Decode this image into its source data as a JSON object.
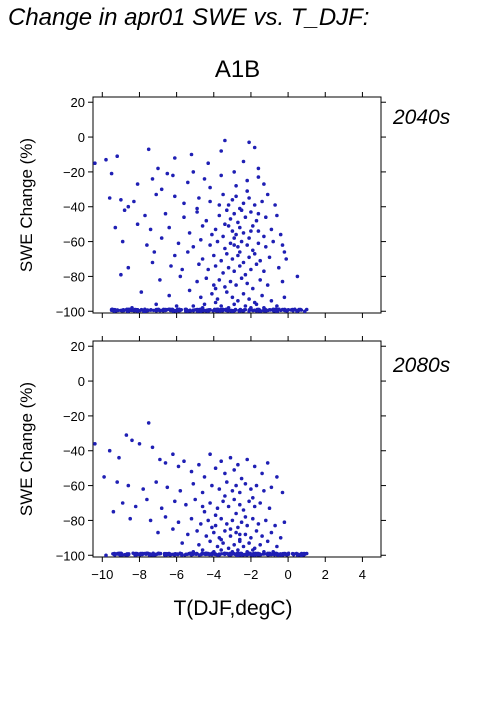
{
  "figure": {
    "title": "Change in apr01 SWE vs. T_DJF:",
    "scenario": "A1B",
    "accent_color": "#1f1fb4"
  },
  "chart_data": [
    {
      "type": "scatter",
      "panel_label": "2040s",
      "xlabel": "",
      "ylabel": "SWE Change (%)",
      "xlim": [
        -10.5,
        5
      ],
      "ylim": [
        -101,
        23
      ],
      "xticks": [
        -10,
        -8,
        -6,
        -4,
        -2,
        0,
        2,
        4
      ],
      "yticks": [
        20,
        0,
        -20,
        -40,
        -60,
        -80,
        -100
      ],
      "xtick_labels_shown": false,
      "grid": false,
      "marker_color": "#1f1fb4",
      "points": [
        [
          -10.4,
          -15
        ],
        [
          -9.8,
          -13
        ],
        [
          -9.2,
          -11
        ],
        [
          -7.5,
          -7
        ],
        [
          -6.1,
          -12
        ],
        [
          -5.2,
          -10
        ],
        [
          -4.3,
          -15
        ],
        [
          -3.4,
          -2
        ],
        [
          -3.6,
          -8
        ],
        [
          -2.1,
          -3
        ],
        [
          -1.8,
          -6
        ],
        [
          -2.4,
          -14
        ],
        [
          -1.6,
          -18
        ],
        [
          -9.5,
          -21
        ],
        [
          -7.0,
          -18
        ],
        [
          -6.5,
          -21
        ],
        [
          -8.1,
          -27
        ],
        [
          -7.3,
          -24
        ],
        [
          -6.2,
          -22
        ],
        [
          -5.4,
          -26
        ],
        [
          -5.1,
          -20
        ],
        [
          -4.5,
          -24
        ],
        [
          -3.6,
          -22
        ],
        [
          -2.9,
          -20
        ],
        [
          -2.2,
          -25
        ],
        [
          -1.6,
          -23
        ],
        [
          -1.3,
          -27
        ],
        [
          -2.8,
          -28
        ],
        [
          -4.2,
          -29
        ],
        [
          -6.8,
          -30
        ],
        [
          -9.6,
          -35
        ],
        [
          -9.0,
          -36
        ],
        [
          -8.6,
          -40
        ],
        [
          -8.3,
          -37
        ],
        [
          -7.1,
          -33
        ],
        [
          -6.1,
          -34
        ],
        [
          -5.6,
          -38
        ],
        [
          -4.9,
          -41
        ],
        [
          -4.2,
          -37
        ],
        [
          -3.5,
          -33
        ],
        [
          -3.2,
          -39
        ],
        [
          -3.0,
          -36
        ],
        [
          -2.8,
          -34
        ],
        [
          -2.6,
          -41
        ],
        [
          -2.4,
          -38
        ],
        [
          -2.1,
          -35
        ],
        [
          -1.8,
          -39
        ],
        [
          -1.4,
          -37
        ],
        [
          -1.1,
          -33
        ],
        [
          -0.7,
          -39
        ],
        [
          -8.8,
          -42
        ],
        [
          -7.7,
          -45
        ],
        [
          -6.6,
          -44
        ],
        [
          -5.6,
          -46
        ],
        [
          -4.9,
          -43
        ],
        [
          -4.4,
          -48
        ],
        [
          -3.7,
          -45
        ],
        [
          -3.3,
          -42
        ],
        [
          -3.1,
          -47
        ],
        [
          -2.9,
          -44
        ],
        [
          -2.7,
          -49
        ],
        [
          -2.5,
          -42
        ],
        [
          -2.3,
          -46
        ],
        [
          -2.0,
          -43
        ],
        [
          -1.7,
          -48
        ],
        [
          -1.2,
          -46
        ],
        [
          -0.6,
          -45
        ],
        [
          -9.3,
          -52
        ],
        [
          -8.1,
          -50
        ],
        [
          -7.4,
          -53
        ],
        [
          -6.4,
          -52
        ],
        [
          -5.3,
          -55
        ],
        [
          -4.6,
          -51
        ],
        [
          -3.9,
          -53
        ],
        [
          -3.5,
          -57
        ],
        [
          -3.2,
          -51
        ],
        [
          -3.0,
          -54
        ],
        [
          -2.8,
          -56
        ],
        [
          -2.6,
          -52
        ],
        [
          -2.4,
          -55
        ],
        [
          -2.1,
          -58
        ],
        [
          -1.9,
          -51
        ],
        [
          -1.6,
          -54
        ],
        [
          -1.3,
          -57
        ],
        [
          -0.9,
          -53
        ],
        [
          -0.4,
          -56
        ],
        [
          -8.9,
          -60
        ],
        [
          -7.6,
          -62
        ],
        [
          -6.8,
          -58
        ],
        [
          -5.9,
          -61
        ],
        [
          -5.1,
          -63
        ],
        [
          -4.7,
          -59
        ],
        [
          -4.2,
          -62
        ],
        [
          -3.8,
          -60
        ],
        [
          -3.4,
          -64
        ],
        [
          -3.1,
          -61
        ],
        [
          -2.9,
          -58
        ],
        [
          -2.7,
          -63
        ],
        [
          -2.5,
          -60
        ],
        [
          -2.2,
          -62
        ],
        [
          -1.9,
          -65
        ],
        [
          -1.6,
          -61
        ],
        [
          -1.2,
          -63
        ],
        [
          -0.8,
          -60
        ],
        [
          -0.3,
          -62
        ],
        [
          -0.2,
          -66
        ],
        [
          -7.2,
          -66
        ],
        [
          -6.1,
          -68
        ],
        [
          -5.4,
          -66
        ],
        [
          -4.6,
          -70
        ],
        [
          -4.0,
          -68
        ],
        [
          -3.6,
          -71
        ],
        [
          -3.3,
          -67
        ],
        [
          -3.0,
          -70
        ],
        [
          -2.7,
          -68
        ],
        [
          -2.4,
          -72
        ],
        [
          -2.1,
          -69
        ],
        [
          -1.8,
          -67
        ],
        [
          -1.5,
          -71
        ],
        [
          -1.0,
          -69
        ],
        [
          -0.1,
          -70
        ],
        [
          -8.6,
          -75
        ],
        [
          -7.3,
          -72
        ],
        [
          -6.3,
          -74
        ],
        [
          -5.7,
          -76
        ],
        [
          -4.8,
          -73
        ],
        [
          -4.3,
          -76
        ],
        [
          -3.9,
          -74
        ],
        [
          -3.5,
          -78
        ],
        [
          -3.2,
          -75
        ],
        [
          -2.9,
          -77
        ],
        [
          -2.6,
          -74
        ],
        [
          -2.3,
          -79
        ],
        [
          -2.0,
          -76
        ],
        [
          -1.7,
          -73
        ],
        [
          -1.3,
          -77
        ],
        [
          -0.5,
          -75
        ],
        [
          0.5,
          -80
        ],
        [
          -9.0,
          -79
        ],
        [
          -6.9,
          -82
        ],
        [
          -5.8,
          -80
        ],
        [
          -4.9,
          -83
        ],
        [
          -4.4,
          -81
        ],
        [
          -4.0,
          -85
        ],
        [
          -3.7,
          -82
        ],
        [
          -3.4,
          -86
        ],
        [
          -3.1,
          -83
        ],
        [
          -2.8,
          -85
        ],
        [
          -2.5,
          -81
        ],
        [
          -2.2,
          -84
        ],
        [
          -1.9,
          -87
        ],
        [
          -1.5,
          -82
        ],
        [
          -1.1,
          -85
        ],
        [
          -0.3,
          -83
        ],
        [
          -7.9,
          -89
        ],
        [
          -6.4,
          -91
        ],
        [
          -5.3,
          -88
        ],
        [
          -4.7,
          -92
        ],
        [
          -4.1,
          -90
        ],
        [
          -3.8,
          -93
        ],
        [
          -3.3,
          -89
        ],
        [
          -3.0,
          -92
        ],
        [
          -2.7,
          -94
        ],
        [
          -2.4,
          -90
        ],
        [
          -2.1,
          -93
        ],
        [
          -1.8,
          -95
        ],
        [
          -1.4,
          -91
        ],
        [
          -0.9,
          -94
        ],
        [
          -0.2,
          -92
        ],
        [
          -4.5,
          -96
        ],
        [
          -3.6,
          -97
        ],
        [
          -2.9,
          -96
        ],
        [
          -2.3,
          -97
        ],
        [
          -1.7,
          -96
        ],
        [
          -3.9,
          -95
        ],
        [
          -5.1,
          -97
        ],
        [
          -6.0,
          -97
        ],
        [
          -7.1,
          -96
        ],
        [
          -2.0,
          -98
        ],
        [
          -3.2,
          -98
        ],
        [
          -4.6,
          -98
        ],
        [
          -1.3,
          -98
        ],
        [
          -0.6,
          -97
        ],
        [
          -8.4,
          -98
        ],
        [
          -9.5,
          -99
        ],
        [
          -6.6,
          -99
        ],
        [
          -5.5,
          -99
        ],
        [
          -0.3,
          -99
        ],
        [
          0.9,
          -100
        ],
        [
          1.0,
          -99
        ],
        [
          -3.4,
          -50
        ],
        [
          -2.6,
          -66
        ],
        [
          -3.7,
          -39
        ],
        [
          -4.1,
          -56
        ],
        [
          -2.2,
          -31
        ],
        [
          -3.9,
          -87
        ],
        [
          -2.0,
          -54
        ],
        [
          -4.8,
          -35
        ],
        [
          -1.6,
          -44
        ],
        [
          -2.9,
          -62
        ]
      ],
      "floor_cluster": {
        "x_range": [
          -9.5,
          1
        ],
        "y": -100
      }
    },
    {
      "type": "scatter",
      "panel_label": "2080s",
      "xlabel": "T(DJF,degC)",
      "ylabel": "SWE Change (%)",
      "xlim": [
        -10.5,
        5
      ],
      "ylim": [
        -101,
        23
      ],
      "xticks": [
        -10,
        -8,
        -6,
        -4,
        -2,
        0,
        2,
        4
      ],
      "yticks": [
        20,
        0,
        -20,
        -40,
        -60,
        -80,
        -100
      ],
      "xtick_labels_shown": true,
      "grid": false,
      "marker_color": "#1f1fb4",
      "points": [
        [
          -10.4,
          -36
        ],
        [
          -9.9,
          -55
        ],
        [
          -9.6,
          -40
        ],
        [
          -9.1,
          -44
        ],
        [
          -8.7,
          -31
        ],
        [
          -8.4,
          -34
        ],
        [
          -8.0,
          -36
        ],
        [
          -7.5,
          -24
        ],
        [
          -7.3,
          -38
        ],
        [
          -6.9,
          -45
        ],
        [
          -6.6,
          -47
        ],
        [
          -6.2,
          -42
        ],
        [
          -5.9,
          -49
        ],
        [
          -5.6,
          -46
        ],
        [
          -5.2,
          -52
        ],
        [
          -4.8,
          -48
        ],
        [
          -4.5,
          -55
        ],
        [
          -4.2,
          -42
        ],
        [
          -3.9,
          -50
        ],
        [
          -3.6,
          -46
        ],
        [
          -3.4,
          -53
        ],
        [
          -3.1,
          -44
        ],
        [
          -2.9,
          -51
        ],
        [
          -2.7,
          -48
        ],
        [
          -2.5,
          -56
        ],
        [
          -2.2,
          -45
        ],
        [
          -1.8,
          -49
        ],
        [
          -1.4,
          -53
        ],
        [
          -1.1,
          -47
        ],
        [
          -0.6,
          -55
        ],
        [
          -9.2,
          -58
        ],
        [
          -8.6,
          -60
        ],
        [
          -7.8,
          -62
        ],
        [
          -7.1,
          -58
        ],
        [
          -6.5,
          -61
        ],
        [
          -5.8,
          -63
        ],
        [
          -5.1,
          -59
        ],
        [
          -4.6,
          -64
        ],
        [
          -4.1,
          -60
        ],
        [
          -3.7,
          -62
        ],
        [
          -3.3,
          -58
        ],
        [
          -3.0,
          -63
        ],
        [
          -2.8,
          -60
        ],
        [
          -2.6,
          -64
        ],
        [
          -2.3,
          -59
        ],
        [
          -2.0,
          -62
        ],
        [
          -1.7,
          -60
        ],
        [
          -1.3,
          -63
        ],
        [
          -0.9,
          -61
        ],
        [
          -0.3,
          -64
        ],
        [
          -9.4,
          -75
        ],
        [
          -8.9,
          -70
        ],
        [
          -8.2,
          -72
        ],
        [
          -7.6,
          -68
        ],
        [
          -6.8,
          -73
        ],
        [
          -6.1,
          -69
        ],
        [
          -5.5,
          -71
        ],
        [
          -5.0,
          -68
        ],
        [
          -4.6,
          -72
        ],
        [
          -4.2,
          -70
        ],
        [
          -3.8,
          -73
        ],
        [
          -3.5,
          -69
        ],
        [
          -3.2,
          -72
        ],
        [
          -2.9,
          -68
        ],
        [
          -2.6,
          -71
        ],
        [
          -2.4,
          -74
        ],
        [
          -2.1,
          -69
        ],
        [
          -1.8,
          -72
        ],
        [
          -1.5,
          -70
        ],
        [
          -1.0,
          -73
        ],
        [
          -8.5,
          -79
        ],
        [
          -7.4,
          -80
        ],
        [
          -6.6,
          -78
        ],
        [
          -5.9,
          -81
        ],
        [
          -5.2,
          -79
        ],
        [
          -4.7,
          -82
        ],
        [
          -4.3,
          -80
        ],
        [
          -3.9,
          -83
        ],
        [
          -3.6,
          -79
        ],
        [
          -3.3,
          -82
        ],
        [
          -3.0,
          -80
        ],
        [
          -2.7,
          -84
        ],
        [
          -2.5,
          -81
        ],
        [
          -2.2,
          -83
        ],
        [
          -1.9,
          -79
        ],
        [
          -1.6,
          -82
        ],
        [
          -1.2,
          -80
        ],
        [
          -0.7,
          -83
        ],
        [
          -0.2,
          -81
        ],
        [
          -7.0,
          -87
        ],
        [
          -6.2,
          -85
        ],
        [
          -5.4,
          -88
        ],
        [
          -4.9,
          -86
        ],
        [
          -4.4,
          -89
        ],
        [
          -4.0,
          -87
        ],
        [
          -3.7,
          -90
        ],
        [
          -3.4,
          -86
        ],
        [
          -3.1,
          -89
        ],
        [
          -2.8,
          -87
        ],
        [
          -2.6,
          -91
        ],
        [
          -2.3,
          -88
        ],
        [
          -2.0,
          -90
        ],
        [
          -1.7,
          -86
        ],
        [
          -1.4,
          -89
        ],
        [
          -0.9,
          -87
        ],
        [
          -0.4,
          -90
        ],
        [
          -5.7,
          -93
        ],
        [
          -4.8,
          -94
        ],
        [
          -4.2,
          -92
        ],
        [
          -3.8,
          -95
        ],
        [
          -3.5,
          -93
        ],
        [
          -3.2,
          -96
        ],
        [
          -2.9,
          -94
        ],
        [
          -2.6,
          -92
        ],
        [
          -2.4,
          -95
        ],
        [
          -2.1,
          -93
        ],
        [
          -1.8,
          -96
        ],
        [
          -1.5,
          -94
        ],
        [
          -1.1,
          -92
        ],
        [
          -0.6,
          -95
        ],
        [
          -4.6,
          -97
        ],
        [
          -4.0,
          -98
        ],
        [
          -3.6,
          -97
        ],
        [
          -3.0,
          -98
        ],
        [
          -2.7,
          -97
        ],
        [
          -2.2,
          -98
        ],
        [
          -1.9,
          -97
        ],
        [
          -1.3,
          -98
        ],
        [
          -3.3,
          -99
        ],
        [
          -4.3,
          -99
        ],
        [
          -2.5,
          -99
        ],
        [
          -5.1,
          -98
        ],
        [
          -6.4,
          -99
        ],
        [
          -7.7,
          -99
        ],
        [
          -1.6,
          -99
        ],
        [
          -0.8,
          -98
        ],
        [
          -0.2,
          -99
        ],
        [
          0.7,
          -100
        ],
        [
          1.0,
          -99
        ],
        [
          -9.8,
          -100
        ],
        [
          -3.9,
          -77
        ],
        [
          -2.8,
          -76
        ],
        [
          -3.4,
          -66
        ],
        [
          -2.3,
          -78
        ],
        [
          -4.5,
          -75
        ],
        [
          -1.9,
          -67
        ],
        [
          -3.1,
          -85
        ],
        [
          -2.6,
          -88
        ],
        [
          -4.1,
          -84
        ],
        [
          -3.6,
          -91
        ]
      ],
      "floor_cluster": {
        "x_range": [
          -9.5,
          1
        ],
        "y": -100
      }
    }
  ]
}
